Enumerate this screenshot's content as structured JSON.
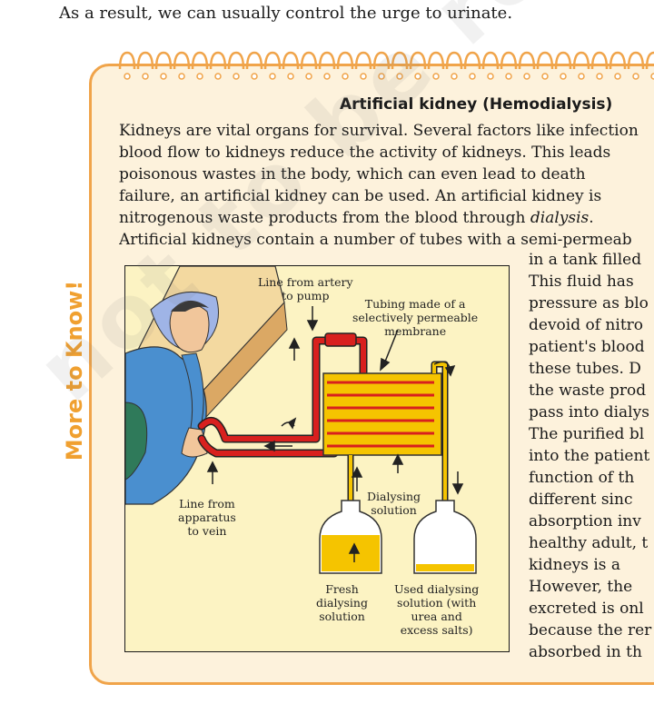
{
  "intro_line": "As a result, we can usually control the urge to urinate.",
  "sidebar_label": "More to Know!",
  "box_title": "Artificial kidney (Hemodialysis)",
  "paragraph_lines": [
    "Kidneys are vital organs for survival. Several factors like infection",
    "blood flow to kidneys reduce the activity of kidneys. This leads",
    "poisonous wastes in the body, which can even lead to death",
    "failure, an artificial kidney can be used. An artificial kidney is",
    "nitrogenous waste products from the blood through dialysis.",
    "Artificial kidneys contain a number of tubes with a semi-permeab"
  ],
  "right_column_lines": [
    "in a tank filled",
    "This fluid has",
    "pressure as blo",
    "devoid of nitro",
    "patient's blood",
    "these tubes. D",
    "the waste prod",
    "pass into dialys",
    "The purified bl",
    "into the patient",
    "function of th",
    "different sinc",
    "absorption inv",
    "healthy adult, t",
    "kidneys is a",
    "However, the",
    "excreted is onl",
    "because the rer",
    "absorbed in th"
  ],
  "figure_labels": {
    "artery_line": "Line from artery\nto pump",
    "tubing": "Tubing made of a\nselectively permeable\nmembrane",
    "dialysing_solution": "Dialysing\nsolution",
    "apparatus_line": "Line from\napparatus\nto vein",
    "fresh_solution": "Fresh\ndialysing\nsolution",
    "used_solution": "Used dialysing\nsolution (with\nurea and\nexcess salts)"
  },
  "watermark": "not to be republished",
  "colors": {
    "box_border": "#f0a44a",
    "box_background": "#fdf2dc",
    "figure_background": "#fcf3c3",
    "blood_tube": "#d8201e",
    "dialysate": "#f5c400",
    "sidebar_label": "#f0a030"
  }
}
